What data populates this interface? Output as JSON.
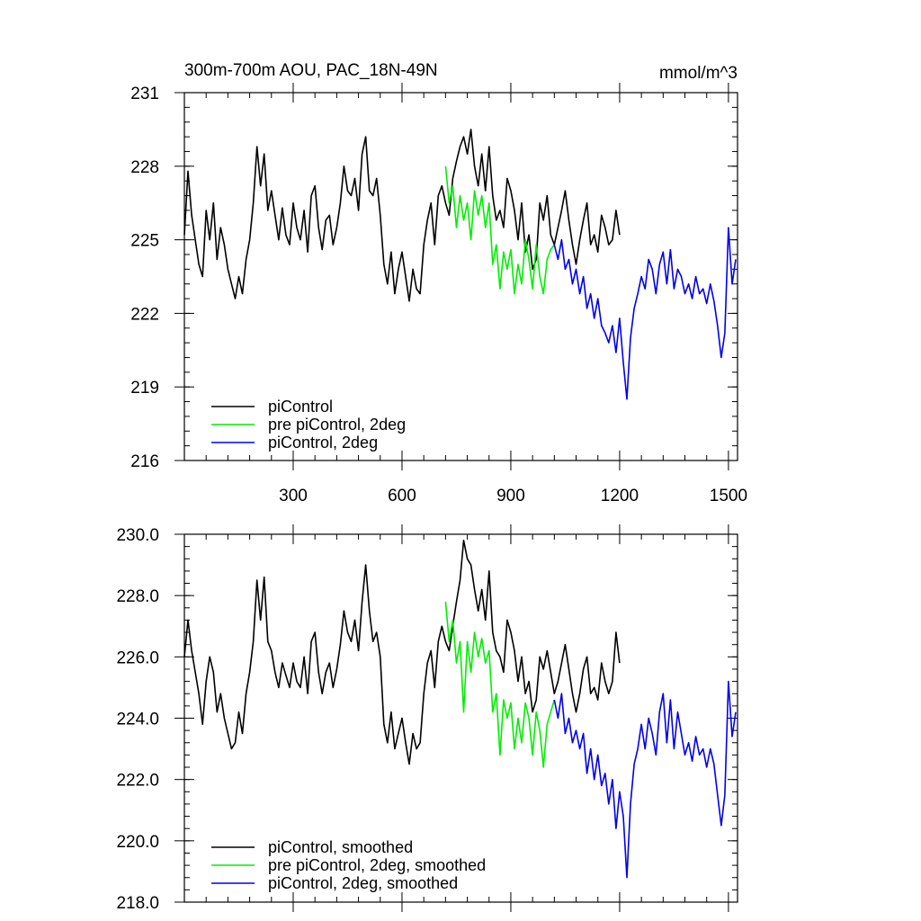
{
  "chart_data": [
    {
      "type": "line",
      "title": "300m-700m AOU, PAC_18N-49N",
      "units": "mmol/m^3",
      "xlabel": "",
      "ylabel": "",
      "xlim": [
        0,
        1525
      ],
      "ylim": [
        216,
        231
      ],
      "xticks": [
        300,
        600,
        900,
        1200,
        1500
      ],
      "yticks": [
        216,
        219,
        222,
        225,
        228,
        231
      ],
      "xtick_labels": [
        "300",
        "600",
        "900",
        "1200",
        "1500"
      ],
      "ytick_labels": [
        "216",
        "219",
        "222",
        "225",
        "228",
        "231"
      ],
      "grid": false,
      "legend_position": "bottom-left",
      "series": [
        {
          "name": "piControl",
          "color": "#000000",
          "x": [
            0,
            10,
            20,
            30,
            40,
            50,
            60,
            70,
            80,
            90,
            100,
            110,
            120,
            130,
            140,
            150,
            160,
            170,
            180,
            190,
            200,
            210,
            220,
            230,
            240,
            250,
            260,
            270,
            280,
            290,
            300,
            310,
            320,
            330,
            340,
            350,
            360,
            370,
            380,
            390,
            400,
            410,
            420,
            430,
            440,
            450,
            460,
            470,
            480,
            490,
            500,
            510,
            520,
            530,
            540,
            550,
            560,
            570,
            580,
            590,
            600,
            610,
            620,
            630,
            640,
            650,
            660,
            670,
            680,
            690,
            700,
            710,
            720,
            730,
            740,
            750,
            760,
            770,
            780,
            790,
            800,
            810,
            820,
            830,
            840,
            850,
            860,
            870,
            880,
            890,
            900,
            910,
            920,
            930,
            940,
            950,
            960,
            970,
            980,
            990,
            1000,
            1010,
            1020,
            1030,
            1040,
            1050,
            1060,
            1070,
            1080,
            1090,
            1100,
            1110,
            1120,
            1130,
            1140,
            1150,
            1160,
            1170,
            1180,
            1190,
            1200
          ],
          "y": [
            225.2,
            227.8,
            226.0,
            225.0,
            224.0,
            223.5,
            226.2,
            225.0,
            226.5,
            224.2,
            225.5,
            224.8,
            223.8,
            223.2,
            222.6,
            223.5,
            222.8,
            224.2,
            225.0,
            226.5,
            228.8,
            227.2,
            228.5,
            226.2,
            227.0,
            226.0,
            225.0,
            226.3,
            225.2,
            224.8,
            226.5,
            225.5,
            225.0,
            226.2,
            224.5,
            226.8,
            227.2,
            225.5,
            224.6,
            225.8,
            226.0,
            224.8,
            225.5,
            226.5,
            228.0,
            227.0,
            226.8,
            227.5,
            226.2,
            228.5,
            229.2,
            227.0,
            226.8,
            227.5,
            226.0,
            224.0,
            223.2,
            224.5,
            222.8,
            223.8,
            224.5,
            223.5,
            222.5,
            223.8,
            223.0,
            222.8,
            224.8,
            225.8,
            226.5,
            224.8,
            226.8,
            227.2,
            226.5,
            226.0,
            227.5,
            228.2,
            228.8,
            229.2,
            228.5,
            229.5,
            228.0,
            227.2,
            228.5,
            227.0,
            228.8,
            226.8,
            225.8,
            226.2,
            225.5,
            227.5,
            227.0,
            226.2,
            225.0,
            226.5,
            224.5,
            225.2,
            223.8,
            224.2,
            226.5,
            225.8,
            226.8,
            225.2,
            224.8,
            225.5,
            226.2,
            227.0,
            225.8,
            224.8,
            224.0,
            225.0,
            225.8,
            226.5,
            224.8,
            225.2,
            224.5,
            226.0,
            225.5,
            224.8,
            225.0,
            226.2,
            225.2
          ]
        },
        {
          "name": "pre piControl, 2deg",
          "color": "#00ee00",
          "x": [
            720,
            730,
            740,
            750,
            760,
            770,
            780,
            790,
            800,
            810,
            820,
            830,
            840,
            850,
            860,
            870,
            880,
            890,
            900,
            910,
            920,
            930,
            940,
            950,
            960,
            970,
            980,
            990,
            1000,
            1010,
            1020
          ],
          "y": [
            228.0,
            226.5,
            227.2,
            225.5,
            226.8,
            225.8,
            226.5,
            225.0,
            227.0,
            226.0,
            226.8,
            225.5,
            226.5,
            224.0,
            224.8,
            223.0,
            224.5,
            223.8,
            224.6,
            222.8,
            224.0,
            223.2,
            225.0,
            224.2,
            223.0,
            224.8,
            223.5,
            222.8,
            224.2,
            224.6,
            224.8
          ]
        },
        {
          "name": "piControl, 2deg",
          "color": "#0000ee",
          "x": [
            1020,
            1030,
            1040,
            1050,
            1060,
            1070,
            1080,
            1090,
            1100,
            1110,
            1120,
            1130,
            1140,
            1150,
            1160,
            1170,
            1180,
            1190,
            1200,
            1210,
            1220,
            1230,
            1240,
            1250,
            1260,
            1270,
            1280,
            1290,
            1300,
            1310,
            1320,
            1330,
            1340,
            1350,
            1360,
            1370,
            1380,
            1390,
            1400,
            1410,
            1420,
            1430,
            1440,
            1450,
            1460,
            1470,
            1480,
            1490,
            1500,
            1510,
            1520
          ],
          "y": [
            224.8,
            224.2,
            225.0,
            223.8,
            224.2,
            223.2,
            223.8,
            222.8,
            223.5,
            222.2,
            222.8,
            221.8,
            222.6,
            221.5,
            221.2,
            220.8,
            221.5,
            220.4,
            221.8,
            220.0,
            218.5,
            221.0,
            222.2,
            222.8,
            223.5,
            223.0,
            224.2,
            223.8,
            222.8,
            224.0,
            224.5,
            223.2,
            224.6,
            223.0,
            223.8,
            223.5,
            222.8,
            223.2,
            222.6,
            223.5,
            222.8,
            223.0,
            222.4,
            223.2,
            222.5,
            221.5,
            220.2,
            221.2,
            225.5,
            223.2,
            224.2
          ]
        }
      ]
    },
    {
      "type": "line",
      "title": "",
      "xlabel": "",
      "ylabel": "",
      "xlim": [
        0,
        1525
      ],
      "ylim": [
        218.0,
        230.0
      ],
      "xticks": [
        300,
        600,
        900,
        1200,
        1500
      ],
      "yticks": [
        218.0,
        220.0,
        222.0,
        224.0,
        226.0,
        228.0,
        230.0
      ],
      "ytick_labels": [
        "218.0",
        "220.0",
        "222.0",
        "224.0",
        "226.0",
        "228.0",
        "230.0"
      ],
      "grid": false,
      "legend_position": "bottom-left",
      "series": [
        {
          "name": "piControl, smoothed",
          "color": "#000000",
          "x": [
            0,
            10,
            20,
            30,
            40,
            50,
            60,
            70,
            80,
            90,
            100,
            110,
            120,
            130,
            140,
            150,
            160,
            170,
            180,
            190,
            200,
            210,
            220,
            230,
            240,
            250,
            260,
            270,
            280,
            290,
            300,
            310,
            320,
            330,
            340,
            350,
            360,
            370,
            380,
            390,
            400,
            410,
            420,
            430,
            440,
            450,
            460,
            470,
            480,
            490,
            500,
            510,
            520,
            530,
            540,
            550,
            560,
            570,
            580,
            590,
            600,
            610,
            620,
            630,
            640,
            650,
            660,
            670,
            680,
            690,
            700,
            710,
            720,
            730,
            740,
            750,
            760,
            770,
            780,
            790,
            800,
            810,
            820,
            830,
            840,
            850,
            860,
            870,
            880,
            890,
            900,
            910,
            920,
            930,
            940,
            950,
            960,
            970,
            980,
            990,
            1000,
            1010,
            1020,
            1030,
            1040,
            1050,
            1060,
            1070,
            1080,
            1090,
            1100,
            1110,
            1120,
            1130,
            1140,
            1150,
            1160,
            1170,
            1180,
            1190,
            1200
          ],
          "y": [
            226.0,
            227.2,
            226.2,
            225.5,
            224.8,
            223.8,
            225.2,
            226.0,
            225.5,
            224.2,
            224.8,
            224.0,
            223.5,
            223.0,
            223.2,
            224.2,
            223.5,
            224.8,
            225.5,
            226.5,
            228.5,
            227.2,
            228.6,
            226.5,
            226.2,
            225.5,
            225.0,
            225.8,
            225.4,
            225.0,
            225.8,
            225.2,
            225.0,
            226.0,
            224.8,
            226.5,
            226.8,
            225.5,
            224.8,
            225.5,
            225.8,
            225.0,
            225.6,
            226.4,
            227.5,
            226.8,
            226.5,
            227.2,
            226.2,
            227.8,
            229.0,
            227.5,
            226.5,
            226.8,
            226.0,
            223.8,
            223.2,
            224.2,
            223.0,
            223.5,
            224.0,
            223.2,
            222.5,
            223.5,
            223.0,
            223.2,
            224.8,
            225.8,
            226.2,
            225.0,
            226.5,
            227.0,
            226.5,
            226.2,
            227.0,
            227.8,
            228.5,
            229.8,
            229.2,
            229.0,
            228.2,
            227.5,
            228.2,
            227.2,
            228.8,
            226.8,
            226.2,
            226.0,
            225.5,
            227.2,
            226.8,
            226.2,
            225.2,
            226.0,
            224.8,
            225.2,
            224.2,
            224.6,
            226.0,
            225.6,
            226.2,
            225.5,
            224.8,
            225.2,
            225.8,
            226.4,
            225.6,
            224.8,
            224.2,
            224.8,
            225.6,
            226.0,
            224.8,
            225.0,
            224.6,
            225.8,
            225.2,
            224.8,
            225.2,
            226.8,
            225.8
          ]
        },
        {
          "name": "pre piControl, 2deg, smoothed",
          "color": "#00ee00",
          "x": [
            720,
            730,
            740,
            750,
            760,
            770,
            780,
            790,
            800,
            810,
            820,
            830,
            840,
            850,
            860,
            870,
            880,
            890,
            900,
            910,
            920,
            930,
            940,
            950,
            960,
            970,
            980,
            990,
            1000,
            1010,
            1020
          ],
          "y": [
            227.8,
            226.5,
            227.2,
            225.8,
            226.5,
            224.2,
            226.5,
            225.5,
            226.8,
            226.0,
            226.6,
            225.8,
            226.2,
            224.2,
            224.8,
            222.8,
            224.6,
            224.0,
            224.5,
            223.0,
            224.0,
            223.2,
            224.5,
            224.0,
            222.8,
            224.2,
            223.6,
            222.4,
            223.8,
            224.2,
            224.6
          ]
        },
        {
          "name": "piControl, 2deg, smoothed",
          "color": "#0000ee",
          "x": [
            1020,
            1030,
            1040,
            1050,
            1060,
            1070,
            1080,
            1090,
            1100,
            1110,
            1120,
            1130,
            1140,
            1150,
            1160,
            1170,
            1180,
            1190,
            1200,
            1210,
            1220,
            1230,
            1240,
            1250,
            1260,
            1270,
            1280,
            1290,
            1300,
            1310,
            1320,
            1330,
            1340,
            1350,
            1360,
            1370,
            1380,
            1390,
            1400,
            1410,
            1420,
            1430,
            1440,
            1450,
            1460,
            1470,
            1480,
            1490,
            1500,
            1510,
            1520
          ],
          "y": [
            224.6,
            224.0,
            224.8,
            223.5,
            224.0,
            223.2,
            223.6,
            223.0,
            223.5,
            222.2,
            223.0,
            222.0,
            222.8,
            221.8,
            222.2,
            221.2,
            222.0,
            220.4,
            221.6,
            220.8,
            218.8,
            221.2,
            222.5,
            223.0,
            223.8,
            223.0,
            224.0,
            223.5,
            222.8,
            224.2,
            224.8,
            223.2,
            224.6,
            223.0,
            224.2,
            223.5,
            222.8,
            223.2,
            222.6,
            223.4,
            222.8,
            223.0,
            222.4,
            223.0,
            222.5,
            221.5,
            220.5,
            221.5,
            225.2,
            223.4,
            224.2
          ]
        }
      ]
    }
  ]
}
